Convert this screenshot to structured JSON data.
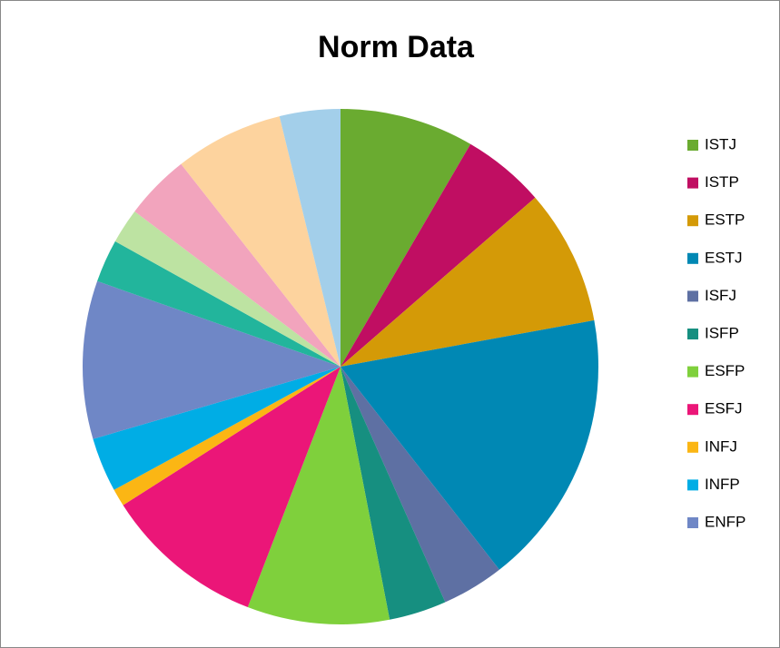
{
  "chart_data": {
    "type": "pie",
    "title": "Norm Data",
    "categories": [
      "ISTJ",
      "ISTP",
      "ESTP",
      "ESTJ",
      "ISFJ",
      "ISFP",
      "ESFP",
      "ESFJ",
      "INFJ",
      "INFP",
      "ENFP",
      null,
      null,
      null,
      null,
      null
    ],
    "values": [
      8.4,
      5.2,
      8.5,
      17.3,
      3.9,
      3.6,
      8.9,
      10.1,
      1.1,
      3.4,
      9.9,
      2.7,
      2.2,
      4.1,
      6.8,
      3.8
    ],
    "colors": [
      "#6aab30",
      "#c00e62",
      "#d49a07",
      "#0088b4",
      "#5e70a3",
      "#168f80",
      "#7fd03c",
      "#eb1678",
      "#fbb614",
      "#00ade5",
      "#6f87c6",
      "#22b59c",
      "#bde3a2",
      "#f2a4bd",
      "#fdd39e",
      "#a3cfea"
    ],
    "legend": "right"
  }
}
